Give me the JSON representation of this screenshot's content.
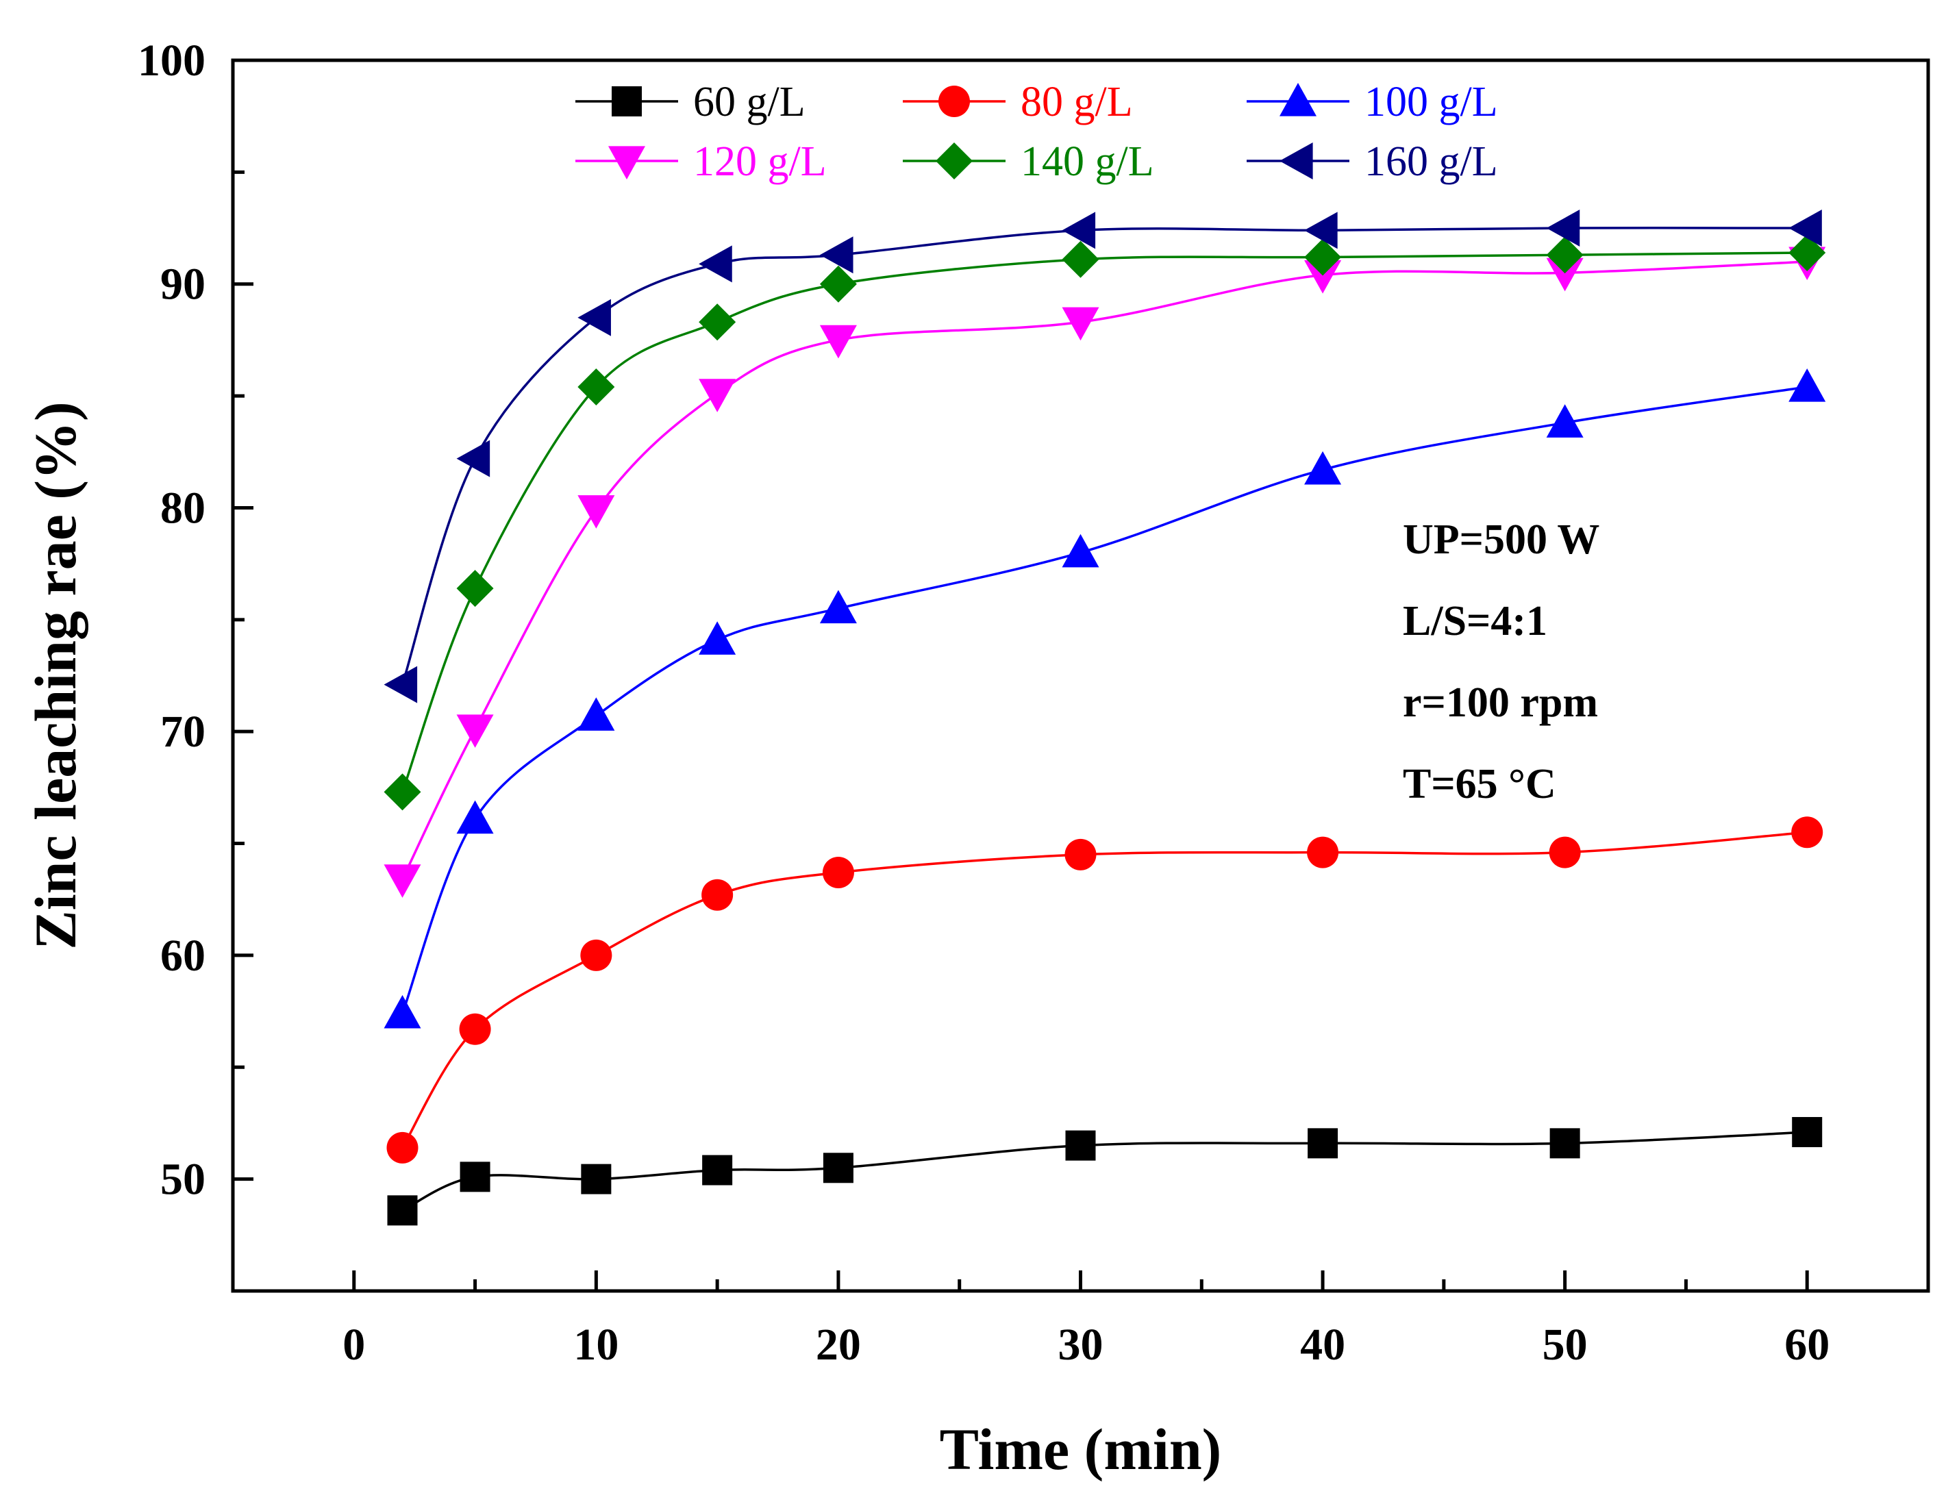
{
  "chart_data": {
    "type": "line",
    "title": "",
    "xlabel": "Time (min)",
    "ylabel": "Zinc leaching rae (%)",
    "xlim": [
      -5,
      65
    ],
    "ylim": [
      45,
      100
    ],
    "xticks": [
      0,
      10,
      20,
      30,
      40,
      50,
      60
    ],
    "yticks": [
      50,
      60,
      70,
      80,
      90,
      100
    ],
    "grid": false,
    "legend_position": "top",
    "x": [
      2,
      5,
      10,
      15,
      20,
      30,
      40,
      50,
      60
    ],
    "series": [
      {
        "name": "60 g/L",
        "color": "#000000",
        "marker": "square",
        "values": [
          48.6,
          50.1,
          50.0,
          50.4,
          50.5,
          51.5,
          51.6,
          51.6,
          52.1
        ]
      },
      {
        "name": "80 g/L",
        "color": "#ff0000",
        "marker": "circle",
        "values": [
          51.4,
          56.7,
          60.0,
          62.7,
          63.7,
          64.5,
          64.6,
          64.6,
          65.5
        ]
      },
      {
        "name": "100 g/L",
        "color": "#0000ff",
        "marker": "triangle-up",
        "values": [
          57.4,
          66.1,
          70.7,
          74.1,
          75.5,
          78.0,
          81.7,
          83.8,
          85.4
        ]
      },
      {
        "name": "120 g/L",
        "color": "#ff00ff",
        "marker": "triangle-down",
        "values": [
          63.4,
          70.1,
          79.9,
          85.1,
          87.5,
          88.3,
          90.4,
          90.5,
          91.0
        ]
      },
      {
        "name": "140 g/L",
        "color": "#008000",
        "marker": "diamond",
        "values": [
          67.3,
          76.4,
          85.4,
          88.3,
          90.0,
          91.1,
          91.2,
          91.3,
          91.4
        ]
      },
      {
        "name": "160 g/L",
        "color": "#000080",
        "marker": "triangle-left",
        "values": [
          72.1,
          82.2,
          88.5,
          90.9,
          91.3,
          92.4,
          92.4,
          92.5,
          92.5
        ]
      }
    ],
    "annotations": [
      "UP=500 W",
      "L/S=4:1",
      "r=100 rpm",
      "T=65 °C"
    ]
  }
}
